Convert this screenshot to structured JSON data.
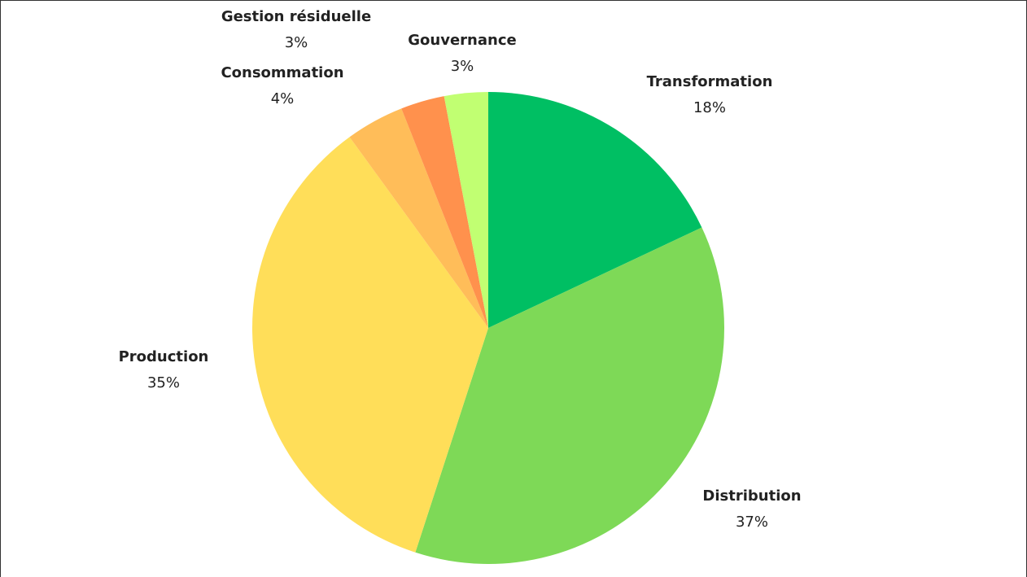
{
  "chart_data": {
    "type": "pie",
    "categories": [
      "Transformation",
      "Distribution",
      "Production",
      "Consommation",
      "Gestion résiduelle",
      "Gouvernance"
    ],
    "values": [
      18,
      37,
      35,
      4,
      3,
      3
    ],
    "value_labels": [
      "18%",
      "37%",
      "35%",
      "4%",
      "3%",
      "3%"
    ],
    "colors": [
      "#00bf63",
      "#7ed957",
      "#ffde59",
      "#ffbd59",
      "#ff914d",
      "#c1ff72"
    ]
  }
}
